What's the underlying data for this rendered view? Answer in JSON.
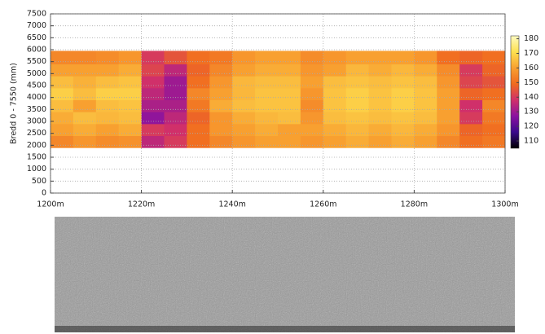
{
  "chart_data": {
    "type": "heatmap",
    "y_label": "Bredd 0 - 7550 (mm)",
    "xlim": [
      1200,
      1300
    ],
    "xticks": [
      {
        "value": 1200,
        "label": "1200m"
      },
      {
        "value": 1220,
        "label": "1220m"
      },
      {
        "value": 1240,
        "label": "1240m"
      },
      {
        "value": 1260,
        "label": "1260m"
      },
      {
        "value": 1280,
        "label": "1280m"
      },
      {
        "value": 1300,
        "label": "1300m"
      }
    ],
    "ylim": [
      0,
      7500
    ],
    "yticks": [
      0,
      500,
      1000,
      1500,
      2000,
      2500,
      3000,
      3500,
      4000,
      4500,
      5000,
      5500,
      6000,
      6500,
      7000,
      7500
    ],
    "grid": true,
    "x": [
      1200,
      1205,
      1210,
      1215,
      1220,
      1225,
      1230,
      1235,
      1240,
      1245,
      1250,
      1255,
      1260,
      1265,
      1270,
      1275,
      1280,
      1285,
      1290,
      1295,
      1300
    ],
    "y": [
      1900,
      2400,
      2900,
      3400,
      3900,
      4400,
      4900,
      5400,
      5950
    ],
    "values": [
      [
        155,
        158,
        156,
        157,
        135,
        140,
        150,
        155,
        158,
        160,
        160,
        158,
        160,
        162,
        160,
        162,
        160,
        155,
        150,
        152
      ],
      [
        160,
        162,
        160,
        162,
        140,
        138,
        150,
        158,
        160,
        162,
        160,
        160,
        162,
        164,
        162,
        164,
        162,
        158,
        148,
        150
      ],
      [
        162,
        165,
        164,
        165,
        128,
        135,
        148,
        158,
        162,
        164,
        165,
        158,
        165,
        166,
        165,
        166,
        165,
        160,
        140,
        152
      ],
      [
        165,
        160,
        165,
        166,
        132,
        132,
        152,
        162,
        165,
        166,
        166,
        156,
        166,
        168,
        166,
        168,
        166,
        160,
        138,
        155
      ],
      [
        168,
        165,
        168,
        168,
        135,
        130,
        155,
        160,
        164,
        166,
        166,
        158,
        166,
        168,
        166,
        168,
        166,
        160,
        148,
        150
      ],
      [
        165,
        163,
        165,
        166,
        138,
        130,
        150,
        158,
        164,
        165,
        165,
        160,
        165,
        166,
        165,
        166,
        165,
        158,
        142,
        145
      ],
      [
        160,
        160,
        160,
        162,
        142,
        135,
        148,
        155,
        160,
        162,
        162,
        158,
        160,
        164,
        162,
        164,
        162,
        156,
        140,
        148
      ],
      [
        155,
        155,
        156,
        158,
        140,
        145,
        150,
        152,
        158,
        160,
        160,
        156,
        158,
        160,
        160,
        160,
        158,
        150,
        148,
        150
      ]
    ],
    "clim": [
      105,
      182
    ],
    "cticks": [
      110,
      120,
      130,
      140,
      150,
      160,
      170,
      180
    ],
    "colormap": [
      "#000000",
      "#3a0a8c",
      "#8a12a0",
      "#d0306a",
      "#f06a20",
      "#f8a030",
      "#fde050",
      "#fffbc0"
    ]
  }
}
